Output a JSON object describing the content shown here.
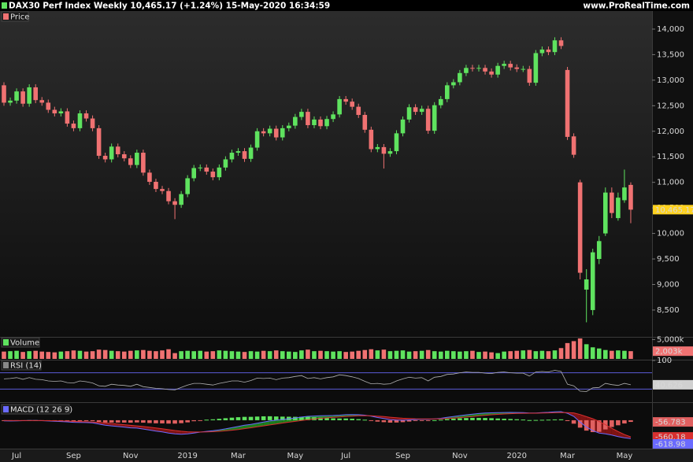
{
  "header": {
    "title": "DAX30 Perf Index Weekly 10,465.17 (+1.24%) 15-May-2020 16:34:59",
    "site": "www.ProRealTime.com"
  },
  "chart_data": [
    {
      "type": "candlestick",
      "label": "Price",
      "up_color": "#5fe35f",
      "down_color": "#f07272",
      "categories": [
        null,
        null,
        "Jul",
        null,
        null,
        null,
        null,
        null,
        null,
        null,
        null,
        "Sep",
        null,
        null,
        null,
        null,
        null,
        null,
        null,
        null,
        "Nov",
        null,
        null,
        null,
        null,
        null,
        null,
        null,
        null,
        "2019",
        null,
        null,
        null,
        null,
        null,
        null,
        null,
        "Mar",
        null,
        null,
        null,
        null,
        null,
        null,
        null,
        null,
        "May",
        null,
        null,
        null,
        null,
        null,
        null,
        null,
        "Jul",
        null,
        null,
        null,
        null,
        null,
        null,
        null,
        null,
        "Sep",
        null,
        null,
        null,
        null,
        null,
        null,
        null,
        null,
        "Nov",
        null,
        null,
        null,
        null,
        null,
        null,
        null,
        null,
        "2020",
        null,
        null,
        null,
        null,
        null,
        null,
        null,
        "Mar",
        null,
        null,
        null,
        null,
        null,
        null,
        null,
        null,
        "May",
        null
      ],
      "open": [
        12900,
        12560,
        12600,
        12780,
        12540,
        12860,
        12610,
        12560,
        12420,
        12350,
        12390,
        12150,
        12060,
        12350,
        12250,
        12060,
        11520,
        11450,
        11700,
        11550,
        11470,
        11340,
        11580,
        11190,
        11010,
        10870,
        10830,
        10630,
        10560,
        10770,
        11080,
        11280,
        11290,
        11210,
        11100,
        11290,
        11450,
        11580,
        11610,
        11460,
        11680,
        12000,
        11960,
        12050,
        11880,
        12060,
        12110,
        12280,
        12380,
        12120,
        12230,
        12100,
        12240,
        12330,
        12630,
        12580,
        12480,
        12320,
        12030,
        11650,
        11690,
        11560,
        11610,
        11960,
        12230,
        12470,
        12380,
        12440,
        12010,
        12510,
        12630,
        12900,
        12960,
        13140,
        13240,
        13230,
        13240,
        13170,
        13110,
        13280,
        13320,
        13250,
        13220,
        13220,
        12950,
        13530,
        13600,
        13550,
        13780,
        13200,
        11900,
        11000,
        8900,
        8500,
        9500,
        10000,
        10800,
        10300,
        10650,
        10950
      ],
      "high": [
        12960,
        12660,
        12840,
        12840,
        12920,
        12920,
        12670,
        12620,
        12480,
        12450,
        12450,
        12210,
        12410,
        12410,
        12310,
        12120,
        11580,
        11760,
        11760,
        11610,
        11530,
        11640,
        11640,
        11250,
        11070,
        10930,
        10890,
        10690,
        10830,
        11140,
        11340,
        11350,
        11350,
        11270,
        11350,
        11510,
        11640,
        11670,
        11670,
        11740,
        12060,
        12060,
        12110,
        12110,
        12120,
        12170,
        12340,
        12440,
        12440,
        12290,
        12290,
        12300,
        12390,
        12690,
        12690,
        12640,
        12540,
        12380,
        12090,
        11750,
        11750,
        11670,
        12020,
        12290,
        12530,
        12530,
        12500,
        12500,
        12570,
        12690,
        12960,
        13020,
        13200,
        13300,
        13300,
        13300,
        13300,
        13230,
        13340,
        13380,
        13380,
        13310,
        13280,
        13280,
        13590,
        13660,
        13660,
        13840,
        13840,
        13260,
        11960,
        11050,
        9300,
        9700,
        9950,
        10900,
        10900,
        10800,
        11250,
        11000
      ],
      "low": [
        12500,
        12500,
        12540,
        12480,
        12480,
        12550,
        12500,
        12360,
        12290,
        12290,
        12090,
        12000,
        12000,
        12190,
        12000,
        11460,
        11390,
        11390,
        11490,
        11410,
        11280,
        11280,
        11130,
        10950,
        10810,
        10770,
        10570,
        10280,
        10500,
        10710,
        11020,
        11220,
        11150,
        11040,
        11040,
        11230,
        11390,
        11520,
        11400,
        11400,
        11620,
        11900,
        11900,
        11820,
        11820,
        12000,
        12050,
        12220,
        12060,
        12060,
        12040,
        12040,
        12180,
        12270,
        12520,
        12420,
        12260,
        11970,
        11590,
        11590,
        11270,
        11500,
        11550,
        11900,
        12170,
        12320,
        12320,
        11950,
        11950,
        12450,
        12570,
        12840,
        12900,
        13080,
        13170,
        13170,
        13110,
        13050,
        13050,
        13220,
        13190,
        13160,
        13160,
        12890,
        12890,
        13470,
        13490,
        13490,
        13610,
        11830,
        11480,
        9100,
        8260,
        8400,
        9400,
        9950,
        10300,
        10250,
        10600,
        10200
      ],
      "close": [
        12560,
        12600,
        12780,
        12540,
        12860,
        12610,
        12560,
        12420,
        12350,
        12390,
        12150,
        12060,
        12350,
        12250,
        12060,
        11520,
        11450,
        11700,
        11550,
        11470,
        11340,
        11580,
        11190,
        11010,
        10870,
        10830,
        10630,
        10560,
        10770,
        11080,
        11280,
        11290,
        11210,
        11100,
        11290,
        11450,
        11580,
        11610,
        11460,
        11680,
        12000,
        11960,
        12050,
        11880,
        12060,
        12110,
        12280,
        12380,
        12120,
        12230,
        12100,
        12240,
        12330,
        12630,
        12580,
        12480,
        12320,
        12030,
        11650,
        11690,
        11560,
        11610,
        11960,
        12230,
        12470,
        12380,
        12440,
        12010,
        12510,
        12630,
        12900,
        12960,
        13140,
        13240,
        13230,
        13240,
        13170,
        13110,
        13280,
        13320,
        13250,
        13220,
        13220,
        12950,
        13530,
        13600,
        13550,
        13780,
        13670,
        11890,
        11540,
        9230,
        9100,
        9630,
        9850,
        10800,
        10400,
        10700,
        10900,
        10465.17
      ],
      "close_label": "10,465.17",
      "ylim": [
        7975,
        14354
      ],
      "yticks": [
        {
          "value": 8500,
          "label": "8,500"
        },
        {
          "value": 9000,
          "label": "9,000"
        },
        {
          "value": 9500,
          "label": "9,500"
        },
        {
          "value": 10000,
          "label": "10,000"
        },
        {
          "value": 10500,
          "label": "10,500"
        },
        {
          "value": 11000,
          "label": "11,000"
        },
        {
          "value": 11500,
          "label": "11,500"
        },
        {
          "value": 12000,
          "label": "12,000"
        },
        {
          "value": 12500,
          "label": "12,500"
        },
        {
          "value": 13000,
          "label": "13,000"
        },
        {
          "value": 13500,
          "label": "13,500"
        },
        {
          "value": 14000,
          "label": "14,000"
        }
      ]
    },
    {
      "type": "bar",
      "label": "Volume",
      "values": [
        1900,
        2000,
        2100,
        1800,
        2000,
        2100,
        1900,
        1800,
        1700,
        1900,
        2000,
        2200,
        2100,
        1900,
        2000,
        2400,
        2300,
        2100,
        2000,
        1900,
        2100,
        2200,
        2300,
        2100,
        2000,
        2200,
        2500,
        1500,
        2000,
        2100,
        2000,
        2100,
        1900,
        2000,
        2200,
        2100,
        2000,
        1900,
        1800,
        2000,
        1900,
        2100,
        2000,
        2200,
        2000,
        1900,
        1800,
        2200,
        2400,
        2000,
        2100,
        2000,
        1900,
        2000,
        1800,
        1900,
        2100,
        2300,
        2500,
        2200,
        2400,
        2000,
        2100,
        2200,
        1900,
        2000,
        2100,
        2300,
        2000,
        1900,
        2100,
        2000,
        1900,
        2000,
        2100,
        1800,
        1900,
        1700,
        1500,
        1900,
        2000,
        2100,
        2200,
        2300,
        2000,
        2100,
        2000,
        2200,
        2800,
        4100,
        4600,
        5300,
        3800,
        3000,
        2700,
        2300,
        2100,
        2200,
        2100,
        2003
      ],
      "last_value_label": "2,003k",
      "ylim": [
        0,
        5500
      ],
      "yticks": [
        {
          "value": 5000,
          "label": "5,000k"
        }
      ]
    },
    {
      "type": "line",
      "label": "RSI (14)",
      "color": "#b0b0b0",
      "level_color": "#5a5ad8",
      "levels": [
        70,
        30
      ],
      "values": [
        55,
        56,
        58,
        54,
        58,
        54,
        53,
        50,
        49,
        50,
        46,
        45,
        50,
        48,
        45,
        38,
        37,
        42,
        40,
        39,
        37,
        42,
        36,
        34,
        32,
        31,
        29,
        28,
        34,
        40,
        44,
        44,
        42,
        40,
        44,
        47,
        50,
        50,
        47,
        51,
        57,
        56,
        57,
        53,
        57,
        58,
        61,
        63,
        56,
        58,
        55,
        58,
        60,
        65,
        63,
        60,
        56,
        49,
        43,
        44,
        42,
        43,
        50,
        55,
        59,
        57,
        58,
        50,
        59,
        61,
        66,
        67,
        70,
        72,
        71,
        71,
        69,
        68,
        71,
        72,
        70,
        69,
        69,
        62,
        72,
        73,
        72,
        76,
        73,
        42,
        38,
        25,
        24,
        33,
        34,
        44,
        41,
        39,
        44,
        40.626
      ],
      "ylim": [
        0,
        100
      ],
      "yticks": [
        100
      ]
    },
    {
      "type": "macd",
      "label": "MACD (12 26 9)",
      "ylim": [
        -955,
        580
      ],
      "series": [
        {
          "name": "MACD",
          "color": "#6a6aff",
          "values": [
            -20,
            -25,
            -20,
            -15,
            -10,
            -10,
            -15,
            -25,
            -35,
            -45,
            -55,
            -70,
            -75,
            -80,
            -90,
            -130,
            -170,
            -190,
            -210,
            -230,
            -255,
            -265,
            -295,
            -330,
            -365,
            -395,
            -430,
            -460,
            -470,
            -460,
            -430,
            -400,
            -375,
            -355,
            -325,
            -290,
            -250,
            -210,
            -170,
            -140,
            -100,
            -60,
            -25,
            0,
            25,
            50,
            75,
            105,
            130,
            140,
            150,
            155,
            160,
            170,
            185,
            190,
            185,
            170,
            135,
            90,
            55,
            20,
            5,
            0,
            10,
            25,
            35,
            30,
            45,
            65,
            95,
            125,
            155,
            180,
            205,
            225,
            240,
            250,
            255,
            260,
            262,
            260,
            255,
            240,
            245,
            255,
            265,
            280,
            290,
            230,
            130,
            -60,
            -230,
            -350,
            -430,
            -460,
            -500,
            -550,
            -590,
            -618.98
          ]
        },
        {
          "name": "Signal",
          "color": "#d83030",
          "values": [
            -10,
            -12,
            -14,
            -14,
            -13,
            -12,
            -13,
            -15,
            -19,
            -24,
            -30,
            -38,
            -45,
            -52,
            -60,
            -74,
            -93,
            -112,
            -131,
            -151,
            -172,
            -191,
            -212,
            -235,
            -261,
            -288,
            -316,
            -345,
            -370,
            -388,
            -397,
            -397,
            -393,
            -385,
            -373,
            -357,
            -336,
            -311,
            -283,
            -254,
            -223,
            -191,
            -158,
            -126,
            -96,
            -67,
            -39,
            -10,
            16,
            41,
            63,
            81,
            97,
            112,
            127,
            139,
            149,
            153,
            149,
            137,
            121,
            101,
            82,
            66,
            55,
            49,
            46,
            43,
            44,
            48,
            57,
            71,
            88,
            106,
            126,
            146,
            165,
            182,
            197,
            210,
            220,
            228,
            233,
            235,
            237,
            241,
            246,
            253,
            260,
            258,
            247,
            190,
            120,
            50,
            -40,
            -150,
            -270,
            -380,
            -480,
            -560.18
          ]
        },
        {
          "name": "Histogram",
          "color": "#e06060",
          "values": [
            -10,
            -13,
            -6,
            -1,
            3,
            2,
            -2,
            -10,
            -16,
            -21,
            -25,
            -32,
            -30,
            -28,
            -30,
            -56,
            -77,
            -78,
            -79,
            -79,
            -83,
            -74,
            -83,
            -95,
            -104,
            -107,
            -114,
            -115,
            -100,
            -72,
            -33,
            -3,
            18,
            30,
            48,
            67,
            86,
            101,
            113,
            114,
            123,
            131,
            133,
            126,
            121,
            117,
            114,
            115,
            114,
            99,
            87,
            74,
            63,
            58,
            58,
            51,
            36,
            17,
            -14,
            -47,
            -66,
            -81,
            -77,
            -66,
            -45,
            -24,
            -11,
            -13,
            1,
            17,
            38,
            54,
            67,
            74,
            79,
            79,
            75,
            68,
            58,
            50,
            42,
            32,
            22,
            5,
            8,
            14,
            19,
            27,
            30,
            -28,
            -117,
            -250,
            -350,
            -400,
            -390,
            -310,
            -230,
            -170,
            -110,
            -56.783
          ]
        }
      ]
    }
  ]
}
